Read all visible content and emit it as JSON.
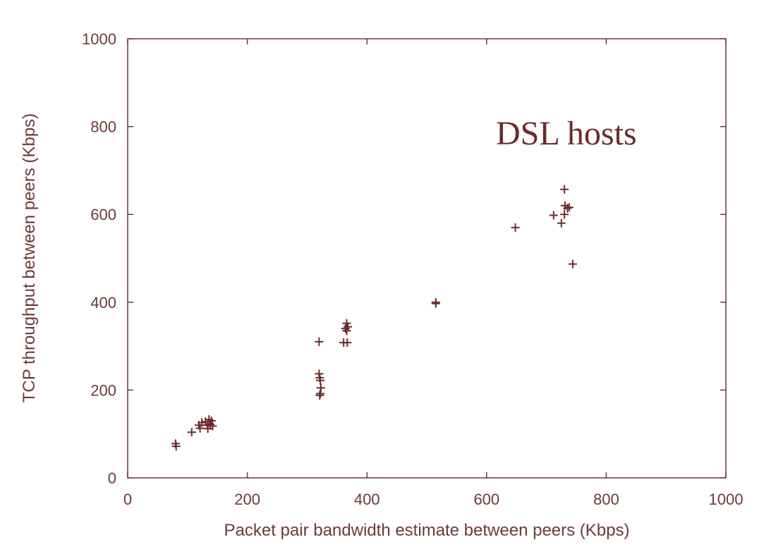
{
  "chart_data": {
    "type": "scatter",
    "title": "",
    "xlabel": "Packet pair bandwidth estimate between peers (Kbps)",
    "ylabel": "TCP throughput between peers (Kbps)",
    "xlim": [
      0,
      1000
    ],
    "ylim": [
      0,
      1000
    ],
    "x_ticks": [
      "0",
      "200",
      "400",
      "600",
      "800",
      "1000"
    ],
    "y_ticks": [
      "0",
      "200",
      "400",
      "600",
      "800",
      "1000"
    ],
    "grid": false,
    "marker": "+",
    "color": "#6b2b2b",
    "annotation": "DSL hosts",
    "points": [
      [
        80,
        78
      ],
      [
        81,
        72
      ],
      [
        107,
        104
      ],
      [
        119,
        120
      ],
      [
        121,
        113
      ],
      [
        124,
        126
      ],
      [
        130,
        128
      ],
      [
        133,
        120
      ],
      [
        134,
        112
      ],
      [
        136,
        133
      ],
      [
        138,
        122
      ],
      [
        140,
        130
      ],
      [
        142,
        118
      ],
      [
        320,
        310
      ],
      [
        320,
        237
      ],
      [
        321,
        228
      ],
      [
        322,
        222
      ],
      [
        323,
        205
      ],
      [
        322,
        192
      ],
      [
        321,
        188
      ],
      [
        361,
        308
      ],
      [
        367,
        308
      ],
      [
        366,
        352
      ],
      [
        364,
        340
      ],
      [
        366,
        335
      ],
      [
        368,
        344
      ],
      [
        515,
        400
      ],
      [
        515,
        397
      ],
      [
        648,
        570
      ],
      [
        712,
        598
      ],
      [
        725,
        580
      ],
      [
        730,
        600
      ],
      [
        730,
        657
      ],
      [
        731,
        620
      ],
      [
        735,
        614
      ],
      [
        738,
        616
      ],
      [
        744,
        487
      ]
    ]
  }
}
